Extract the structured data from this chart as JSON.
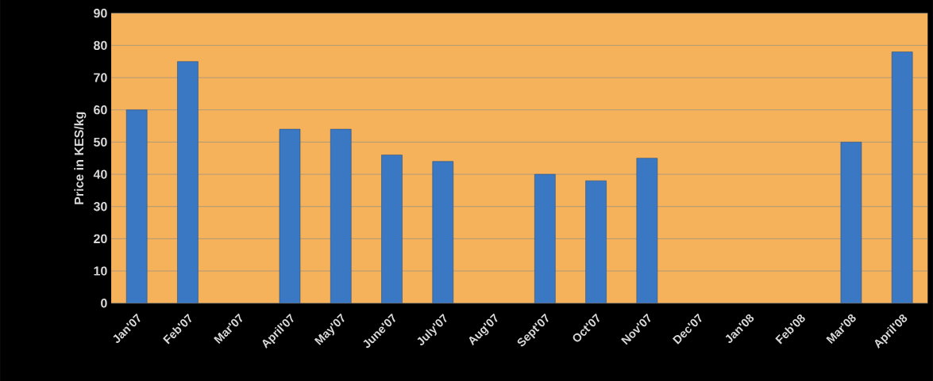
{
  "chart_data": {
    "type": "bar",
    "ylabel": "Price in KES/kg",
    "categories": [
      "Jan'07",
      "Feb'07",
      "Mar'07",
      "April'07",
      "May'07",
      "June'07",
      "July'07",
      "Aug'07",
      "Sept'07",
      "Oct'07",
      "Nov'07",
      "Dec'07",
      "Jan'08",
      "Feb'08",
      "Mar'08",
      "April'08"
    ],
    "values": [
      60,
      75,
      null,
      54,
      54,
      46,
      44,
      null,
      40,
      38,
      45,
      null,
      null,
      null,
      50,
      78
    ],
    "color": "#3b78c4",
    "ylim": [
      0,
      90
    ],
    "yticks": [
      0,
      10,
      20,
      30,
      40,
      50,
      60,
      70,
      80,
      90
    ],
    "grid": "y"
  }
}
